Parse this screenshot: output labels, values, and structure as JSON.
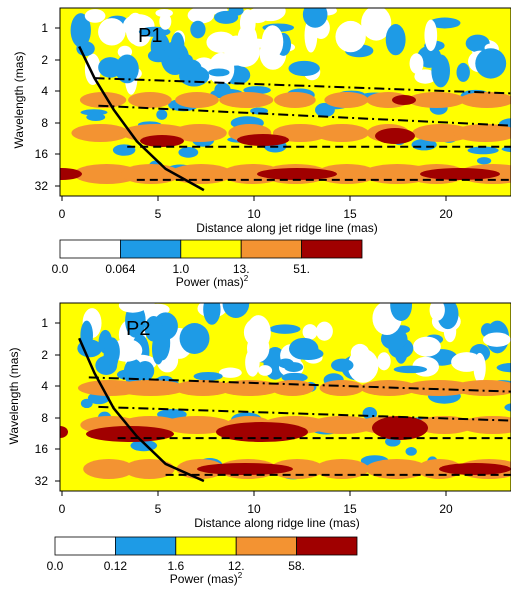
{
  "charts": [
    {
      "id": "p1",
      "panel_label": "P1",
      "xlabel": "Distance along jet ridge line (mas)",
      "ylabel": "Wavelength (mas)",
      "x_ticks": [
        "0",
        "5",
        "10",
        "15",
        "20"
      ],
      "y_ticks": [
        "1",
        "2",
        "4",
        "8",
        "16",
        "32"
      ],
      "colorbar_ticks": [
        "0.0",
        "0.064",
        "1.0",
        "13.",
        "51."
      ],
      "colorbar_label": "Power (mas)",
      "colorbar_sup": "2"
    },
    {
      "id": "p2",
      "panel_label": "P2",
      "xlabel": "Distance along ridge line (mas)",
      "ylabel": "Wavelength (mas)",
      "x_ticks": [
        "0",
        "5",
        "10",
        "15",
        "20"
      ],
      "y_ticks": [
        "1",
        "2",
        "4",
        "8",
        "16",
        "32"
      ],
      "colorbar_ticks": [
        "0.0",
        "0.12",
        "1.6",
        "12.",
        "58."
      ],
      "colorbar_label": "Power (mas)",
      "colorbar_sup": "2"
    }
  ],
  "colors": {
    "level0": "#ffffff",
    "level1": "#1e9be6",
    "level2": "#ffff00",
    "level3": "#f39332",
    "level4": "#a00000"
  },
  "chart_data": [
    {
      "type": "heatmap",
      "title": "P1",
      "xlabel": "Distance along jet ridge line (mas)",
      "ylabel": "Wavelength (mas)",
      "xlim": [
        0,
        23.5
      ],
      "ylim": [
        0.8,
        40
      ],
      "y_scale": "log2",
      "y_inverted": true,
      "colorbar_levels": [
        0.0,
        0.064,
        1.0,
        13.0,
        51.0
      ],
      "ridges": [
        {
          "style": "dash-dot",
          "points": [
            [
              1.8,
              3.0
            ],
            [
              23.5,
              4.2
            ]
          ]
        },
        {
          "style": "dash-dot",
          "points": [
            [
              2.0,
              5.5
            ],
            [
              23.5,
              8.5
            ]
          ]
        },
        {
          "style": "dashed",
          "points": [
            [
              3.5,
              13.5
            ],
            [
              23.5,
              13.5
            ]
          ]
        },
        {
          "style": "dashed",
          "points": [
            [
              4.0,
              28.0
            ],
            [
              23.5,
              28.0
            ]
          ]
        }
      ],
      "cone_of_influence": [
        [
          1.0,
          1.5
        ],
        [
          1.8,
          3.0
        ],
        [
          2.8,
          6.0
        ],
        [
          4.0,
          12.0
        ],
        [
          5.5,
          22.0
        ],
        [
          7.5,
          35.0
        ]
      ]
    },
    {
      "type": "heatmap",
      "title": "P2",
      "xlabel": "Distance along ridge line (mas)",
      "ylabel": "Wavelength (mas)",
      "xlim": [
        0,
        23.5
      ],
      "ylim": [
        0.8,
        40
      ],
      "y_scale": "log2",
      "y_inverted": true,
      "colorbar_levels": [
        0.0,
        0.12,
        1.6,
        12.0,
        58.0
      ],
      "ridges": [
        {
          "style": "dash-dot",
          "points": [
            [
              1.5,
              3.3
            ],
            [
              23.5,
              4.5
            ]
          ]
        },
        {
          "style": "dash-dot",
          "points": [
            [
              2.0,
              6.3
            ],
            [
              23.5,
              8.5
            ]
          ]
        },
        {
          "style": "dashed",
          "points": [
            [
              3.0,
              12.5
            ],
            [
              23.5,
              12.5
            ]
          ]
        },
        {
          "style": "dashed",
          "points": [
            [
              5.5,
              28.0
            ],
            [
              23.5,
              28.0
            ]
          ]
        }
      ],
      "cone_of_influence": [
        [
          1.0,
          1.4
        ],
        [
          1.8,
          3.0
        ],
        [
          2.8,
          6.5
        ],
        [
          4.0,
          12.0
        ],
        [
          5.5,
          22.0
        ],
        [
          7.5,
          32.0
        ]
      ]
    }
  ]
}
